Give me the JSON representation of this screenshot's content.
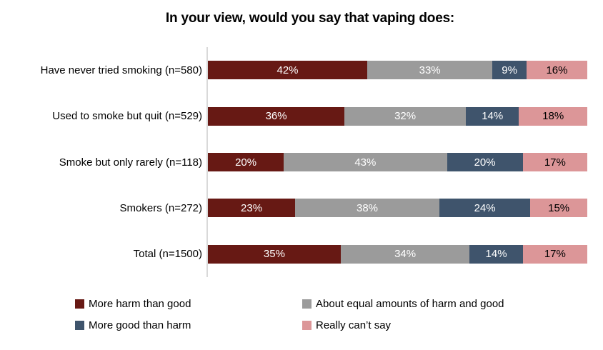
{
  "chart_data": {
    "type": "bar",
    "orientation": "horizontal",
    "stacked": true,
    "title": "In your view, would you say that vaping does:",
    "categories": [
      "Have never tried smoking (n=580)",
      "Used to smoke but quit (n=529)",
      "Smoke but only rarely (n=118)",
      "Smokers (n=272)",
      "Total (n=1500)"
    ],
    "series": [
      {
        "name": "More harm than good",
        "color": "#671914",
        "label_color": "#ffffff",
        "textured": false,
        "values": [
          42,
          36,
          20,
          23,
          35
        ]
      },
      {
        "name": "About equal amounts of harm and good",
        "color": "#9b9b9b",
        "label_color": "#ffffff",
        "textured": true,
        "values": [
          33,
          32,
          43,
          38,
          34
        ]
      },
      {
        "name": "More good than harm",
        "color": "#3f546c",
        "label_color": "#ffffff",
        "textured": true,
        "values": [
          9,
          14,
          20,
          24,
          14
        ]
      },
      {
        "name": "Really can’t say",
        "color": "#dc9698",
        "label_color": "#000000",
        "textured": true,
        "values": [
          16,
          18,
          17,
          15,
          17
        ]
      }
    ],
    "value_suffix": "%",
    "xlim": [
      0,
      100
    ],
    "grid": false,
    "axis_line_color": "#d9d9d9",
    "legend_position": "bottom"
  }
}
